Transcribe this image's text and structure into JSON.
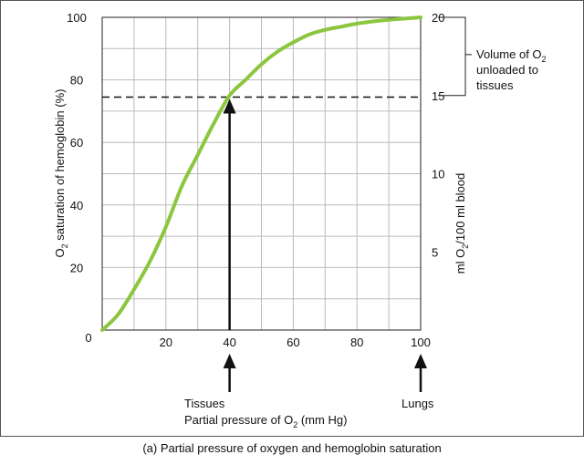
{
  "chart_data": {
    "type": "line",
    "x_ticks": [
      0,
      20,
      40,
      60,
      80,
      100
    ],
    "y_left_ticks": [
      0,
      20,
      40,
      60,
      80,
      100
    ],
    "y_right_ticks": [
      5,
      10,
      15,
      20
    ],
    "xlim": [
      0,
      100
    ],
    "ylim": [
      0,
      100
    ],
    "y_right_lim": [
      0,
      20
    ],
    "ylabel": {
      "pre": "O",
      "sub": "2",
      "post": " saturation of hemoglobin (%)"
    },
    "y_right_label": {
      "pre": "ml O",
      "sub": "2",
      "post": "/100 ml blood"
    },
    "xlabel": {
      "pre": "Partial pressure of O",
      "sub": "2",
      "post": " (mm Hg)"
    },
    "series": [
      {
        "color": "#8cc63f",
        "x": [
          0,
          5,
          10,
          15,
          20,
          25,
          30,
          35,
          40,
          45,
          50,
          55,
          60,
          65,
          70,
          75,
          80,
          85,
          90,
          95,
          100
        ],
        "y": [
          0,
          5,
          13,
          22,
          33,
          46,
          56,
          66,
          75,
          80,
          85,
          89,
          92,
          94.5,
          96,
          97,
          98,
          98.7,
          99.2,
          99.6,
          100
        ]
      }
    ],
    "reference_line": {
      "y": 74.5,
      "style": "dashed"
    },
    "arrows": [
      {
        "x": 40,
        "label": "Tissues",
        "to_curve": true
      },
      {
        "x": 100,
        "label": "Lungs"
      }
    ],
    "annotation": {
      "line1": "Volume of O",
      "sub": "2",
      "line2": "unloaded to",
      "line3": "tissues",
      "range": [
        15,
        20
      ]
    },
    "grid": true
  },
  "caption": "(a) Partial pressure of oxygen and hemoglobin saturation"
}
